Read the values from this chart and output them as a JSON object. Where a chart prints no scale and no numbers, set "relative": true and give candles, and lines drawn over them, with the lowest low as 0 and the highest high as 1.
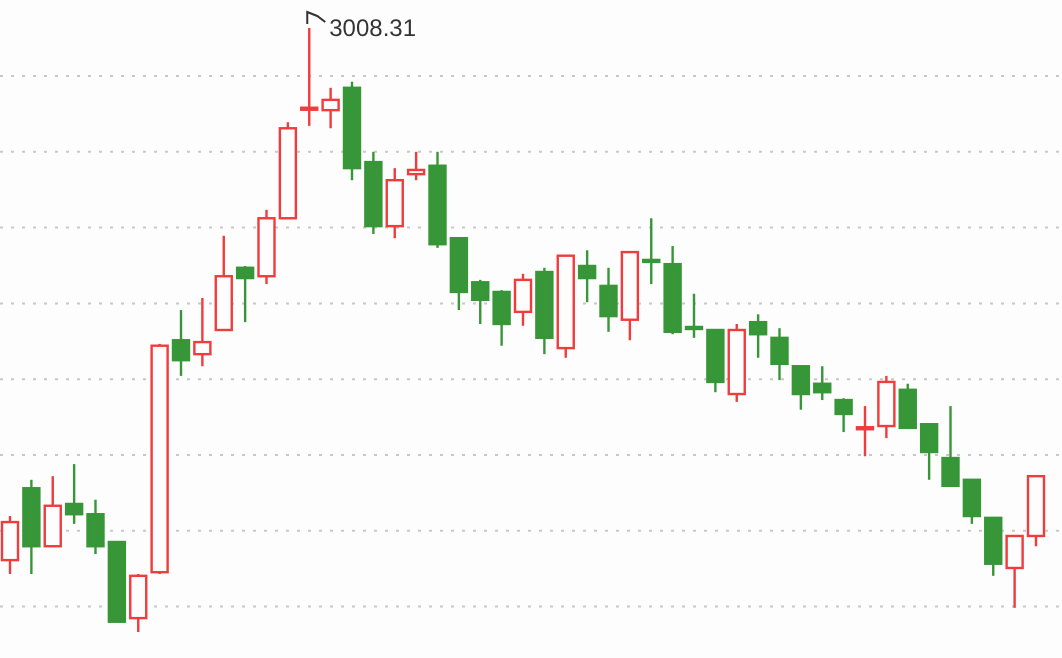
{
  "chart_data": {
    "type": "candlestick",
    "relative": true,
    "grid": "y",
    "categories": [
      null,
      null,
      null,
      null,
      null,
      null,
      null,
      null,
      null,
      null,
      null,
      null,
      null,
      null,
      null,
      null,
      null,
      null,
      null,
      null,
      null,
      null,
      null,
      null,
      null,
      null,
      null,
      null,
      null,
      null,
      null,
      null,
      null,
      null,
      null,
      null,
      null,
      null,
      null,
      null,
      null,
      null,
      null,
      null,
      null,
      null,
      null,
      null,
      null
    ],
    "ohlc": [
      [
        0.119,
        0.192,
        0.096,
        0.182
      ],
      [
        0.238,
        0.252,
        0.096,
        0.142
      ],
      [
        0.142,
        0.258,
        0.142,
        0.209
      ],
      [
        0.212,
        0.278,
        0.179,
        0.195
      ],
      [
        0.195,
        0.219,
        0.129,
        0.142
      ],
      [
        0.149,
        0.149,
        0.017,
        0.017
      ],
      [
        0.023,
        0.096,
        0,
        0.093
      ],
      [
        0.099,
        0.477,
        0.096,
        0.474
      ],
      [
        0.483,
        0.533,
        0.424,
        0.45
      ],
      [
        0.46,
        0.553,
        0.44,
        0.48
      ],
      [
        0.5,
        0.656,
        0.5,
        0.589
      ],
      [
        0.603,
        0.606,
        0.513,
        0.586
      ],
      [
        0.589,
        0.699,
        0.576,
        0.685
      ],
      [
        0.685,
        0.844,
        0.685,
        0.834
      ],
      [
        0.866,
        1,
        0.838,
        0.868
      ],
      [
        0.864,
        0.901,
        0.834,
        0.881
      ],
      [
        0.901,
        0.911,
        0.748,
        0.768
      ],
      [
        0.778,
        0.795,
        0.659,
        0.672
      ],
      [
        0.672,
        0.768,
        0.652,
        0.748
      ],
      [
        0.758,
        0.795,
        0.748,
        0.765
      ],
      [
        0.772,
        0.795,
        0.636,
        0.642
      ],
      [
        0.652,
        0.652,
        0.533,
        0.563
      ],
      [
        0.579,
        0.583,
        0.51,
        0.55
      ],
      [
        0.563,
        0.566,
        0.474,
        0.51
      ],
      [
        0.53,
        0.593,
        0.507,
        0.583
      ],
      [
        0.596,
        0.603,
        0.46,
        0.487
      ],
      [
        0.47,
        0.623,
        0.454,
        0.623
      ],
      [
        0.606,
        0.632,
        0.546,
        0.586
      ],
      [
        0.573,
        0.603,
        0.497,
        0.523
      ],
      [
        0.517,
        0.629,
        0.483,
        0.629
      ],
      [
        0.616,
        0.685,
        0.576,
        0.614
      ],
      [
        0.609,
        0.639,
        0.493,
        0.497
      ],
      [
        0.505,
        0.56,
        0.487,
        0.503
      ],
      [
        0.5,
        0.5,
        0.397,
        0.414
      ],
      [
        0.394,
        0.51,
        0.381,
        0.5
      ],
      [
        0.513,
        0.526,
        0.454,
        0.493
      ],
      [
        0.487,
        0.503,
        0.417,
        0.444
      ],
      [
        0.44,
        0.44,
        0.368,
        0.394
      ],
      [
        0.411,
        0.44,
        0.384,
        0.397
      ],
      [
        0.384,
        0.387,
        0.331,
        0.361
      ],
      [
        0.336,
        0.374,
        0.291,
        0.339
      ],
      [
        0.341,
        0.424,
        0.321,
        0.414
      ],
      [
        0.401,
        0.411,
        0.338,
        0.338
      ],
      [
        0.344,
        0.344,
        0.252,
        0.298
      ],
      [
        0.288,
        0.374,
        0.242,
        0.242
      ],
      [
        0.252,
        0.252,
        0.179,
        0.192
      ],
      [
        0.189,
        0.189,
        0.093,
        0.113
      ],
      [
        0.106,
        0.159,
        0.04,
        0.159
      ],
      [
        0.159,
        0.258,
        0.142,
        0.258
      ]
    ],
    "annotations": [
      "3008.31"
    ]
  }
}
